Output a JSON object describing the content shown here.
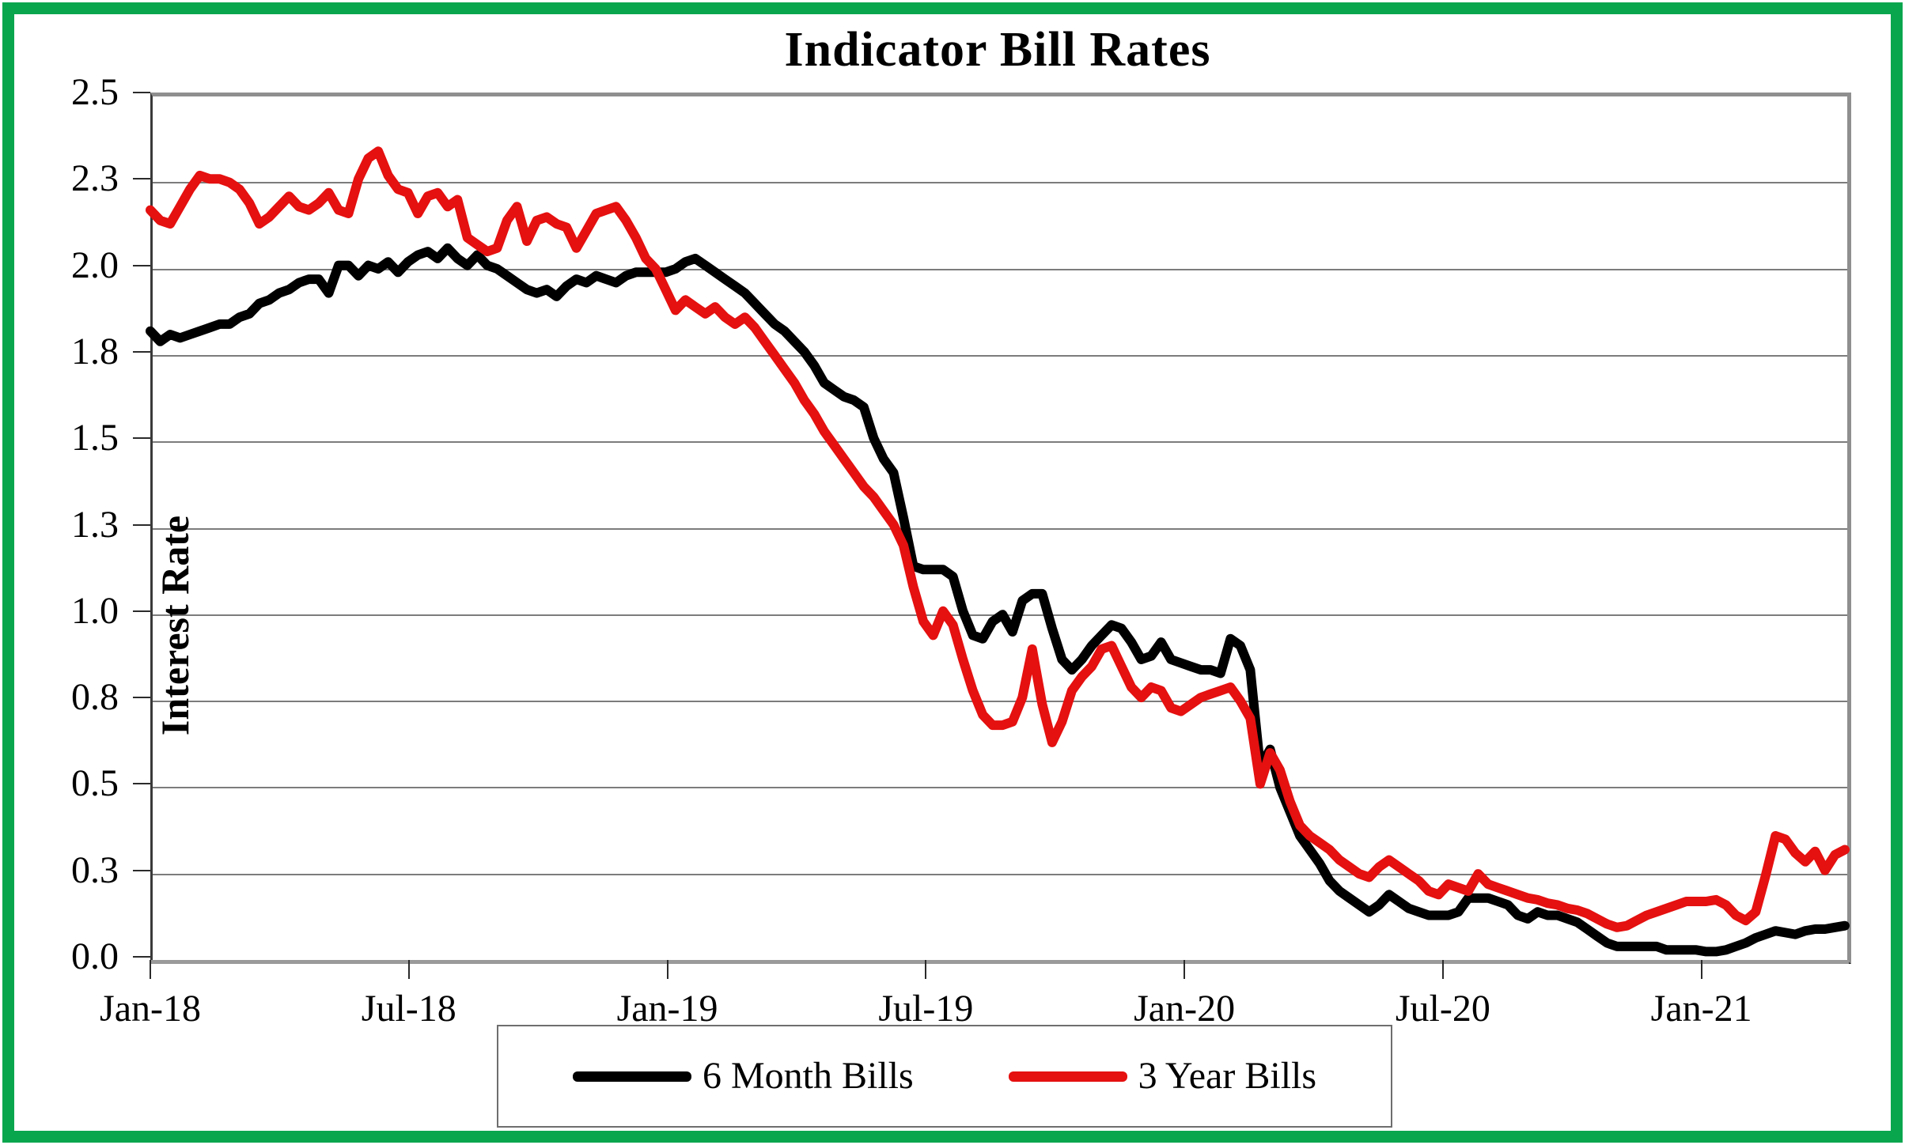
{
  "title": "Indicator Bill Rates",
  "frame_color": "#0aa64e",
  "y_axis": {
    "title": "Interest Rate",
    "min": 0.0,
    "max": 2.5,
    "ticks": [
      {
        "label": "2.5",
        "value": 2.5
      },
      {
        "label": "2.3",
        "value": 2.25
      },
      {
        "label": "2.0",
        "value": 2.0
      },
      {
        "label": "1.8",
        "value": 1.75
      },
      {
        "label": "1.5",
        "value": 1.5
      },
      {
        "label": "1.3",
        "value": 1.25
      },
      {
        "label": "1.0",
        "value": 1.0
      },
      {
        "label": "0.8",
        "value": 0.75
      },
      {
        "label": "0.5",
        "value": 0.5
      },
      {
        "label": "0.3",
        "value": 0.25
      },
      {
        "label": "0.0",
        "value": 0.0
      }
    ]
  },
  "x_axis": {
    "ticks": [
      {
        "label": "Jan-18",
        "month": 0
      },
      {
        "label": "Jul-18",
        "month": 6
      },
      {
        "label": "Jan-19",
        "month": 12
      },
      {
        "label": "Jul-19",
        "month": 18
      },
      {
        "label": "Jan-20",
        "month": 24
      },
      {
        "label": "Jul-20",
        "month": 30
      },
      {
        "label": "Jan-21",
        "month": 36
      }
    ],
    "total_months": 39.33
  },
  "legend": [
    {
      "label": "6 Month Bills",
      "color": "#000000"
    },
    {
      "label": "3 Year Bills",
      "color": "#e51010"
    }
  ],
  "chart_data": {
    "type": "line",
    "title": "Indicator Bill Rates",
    "xlabel": "",
    "ylabel": "Interest Rate",
    "ylim": [
      0.0,
      2.5
    ],
    "grid": true,
    "legend_position": "bottom",
    "x_unit": "weekly, Jan-2018 through mid-Apr-2021",
    "x_tick_labels": [
      "Jan-18",
      "Jul-18",
      "Jan-19",
      "Jul-19",
      "Jan-20",
      "Jul-20",
      "Jan-21"
    ],
    "series": [
      {
        "name": "6 Month Bills",
        "color": "#000000",
        "values": [
          1.81,
          1.78,
          1.8,
          1.79,
          1.8,
          1.81,
          1.82,
          1.83,
          1.83,
          1.85,
          1.86,
          1.89,
          1.9,
          1.92,
          1.93,
          1.95,
          1.96,
          1.96,
          1.92,
          2.0,
          2.0,
          1.97,
          2.0,
          1.99,
          2.01,
          1.98,
          2.01,
          2.03,
          2.04,
          2.02,
          2.05,
          2.02,
          2.0,
          2.03,
          2.0,
          1.99,
          1.97,
          1.95,
          1.93,
          1.92,
          1.93,
          1.91,
          1.94,
          1.96,
          1.95,
          1.97,
          1.96,
          1.95,
          1.97,
          1.98,
          1.98,
          1.98,
          1.98,
          1.99,
          2.01,
          2.02,
          2.0,
          1.98,
          1.96,
          1.94,
          1.92,
          1.89,
          1.86,
          1.83,
          1.81,
          1.78,
          1.75,
          1.71,
          1.66,
          1.64,
          1.62,
          1.61,
          1.59,
          1.5,
          1.44,
          1.4,
          1.27,
          1.13,
          1.12,
          1.12,
          1.12,
          1.1,
          1.0,
          0.93,
          0.92,
          0.97,
          0.99,
          0.94,
          1.03,
          1.05,
          1.05,
          0.95,
          0.86,
          0.83,
          0.86,
          0.9,
          0.93,
          0.96,
          0.95,
          0.91,
          0.86,
          0.87,
          0.91,
          0.86,
          0.85,
          0.84,
          0.83,
          0.83,
          0.82,
          0.92,
          0.9,
          0.83,
          0.55,
          0.6,
          0.49,
          0.42,
          0.35,
          0.31,
          0.27,
          0.22,
          0.19,
          0.17,
          0.15,
          0.13,
          0.15,
          0.18,
          0.16,
          0.14,
          0.13,
          0.12,
          0.12,
          0.12,
          0.13,
          0.17,
          0.17,
          0.17,
          0.16,
          0.15,
          0.12,
          0.11,
          0.13,
          0.12,
          0.12,
          0.11,
          0.1,
          0.08,
          0.06,
          0.04,
          0.03,
          0.03,
          0.03,
          0.03,
          0.03,
          0.02,
          0.02,
          0.02,
          0.02,
          0.015,
          0.015,
          0.02,
          0.03,
          0.04,
          0.055,
          0.065,
          0.075,
          0.07,
          0.065,
          0.075,
          0.08,
          0.08,
          0.085,
          0.09
        ]
      },
      {
        "name": "3 Year Bills",
        "color": "#e51010",
        "values": [
          2.16,
          2.13,
          2.12,
          2.17,
          2.22,
          2.26,
          2.25,
          2.25,
          2.24,
          2.22,
          2.18,
          2.12,
          2.14,
          2.17,
          2.2,
          2.17,
          2.16,
          2.18,
          2.21,
          2.16,
          2.15,
          2.25,
          2.31,
          2.33,
          2.26,
          2.22,
          2.21,
          2.15,
          2.2,
          2.21,
          2.17,
          2.19,
          2.08,
          2.06,
          2.04,
          2.05,
          2.13,
          2.17,
          2.07,
          2.13,
          2.14,
          2.12,
          2.11,
          2.05,
          2.1,
          2.15,
          2.16,
          2.17,
          2.13,
          2.08,
          2.02,
          1.99,
          1.93,
          1.87,
          1.9,
          1.88,
          1.86,
          1.88,
          1.85,
          1.83,
          1.85,
          1.82,
          1.78,
          1.74,
          1.7,
          1.66,
          1.61,
          1.57,
          1.52,
          1.48,
          1.44,
          1.4,
          1.36,
          1.33,
          1.29,
          1.25,
          1.19,
          1.07,
          0.97,
          0.93,
          1.0,
          0.96,
          0.86,
          0.77,
          0.7,
          0.67,
          0.67,
          0.68,
          0.75,
          0.89,
          0.73,
          0.62,
          0.68,
          0.77,
          0.81,
          0.84,
          0.89,
          0.9,
          0.84,
          0.78,
          0.75,
          0.78,
          0.77,
          0.72,
          0.71,
          0.73,
          0.75,
          0.76,
          0.77,
          0.78,
          0.74,
          0.69,
          0.5,
          0.59,
          0.54,
          0.45,
          0.38,
          0.35,
          0.33,
          0.31,
          0.28,
          0.26,
          0.24,
          0.23,
          0.26,
          0.28,
          0.26,
          0.24,
          0.22,
          0.19,
          0.18,
          0.21,
          0.2,
          0.19,
          0.24,
          0.21,
          0.2,
          0.19,
          0.18,
          0.17,
          0.165,
          0.155,
          0.15,
          0.14,
          0.135,
          0.125,
          0.11,
          0.095,
          0.085,
          0.09,
          0.105,
          0.12,
          0.13,
          0.14,
          0.15,
          0.16,
          0.16,
          0.16,
          0.165,
          0.15,
          0.12,
          0.105,
          0.13,
          0.235,
          0.35,
          0.34,
          0.3,
          0.275,
          0.305,
          0.25,
          0.295,
          0.31
        ]
      }
    ]
  }
}
